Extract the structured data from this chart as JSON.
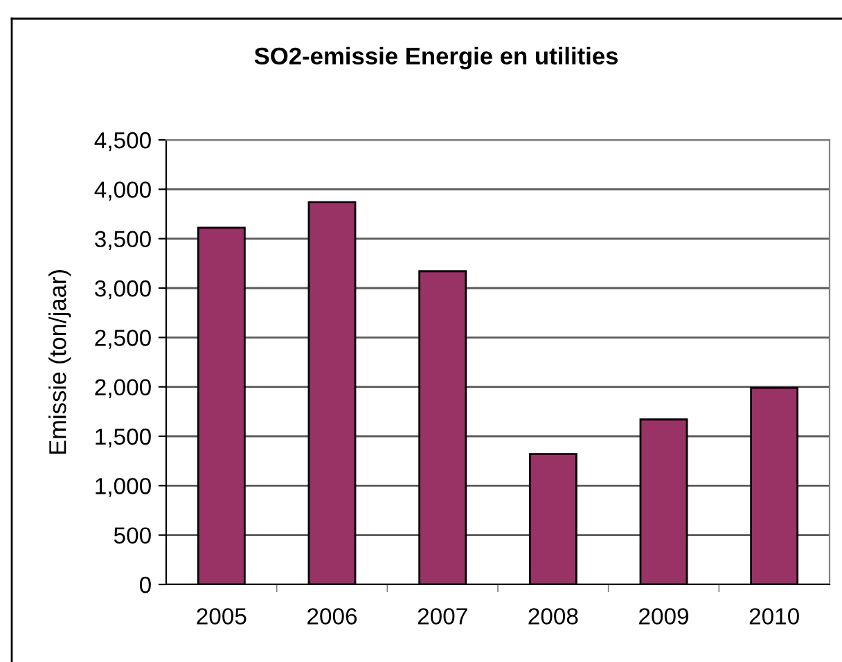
{
  "chart_data": {
    "type": "bar",
    "title": "SO2-emissie Energie en utilities",
    "ylabel": "Emissie (ton/jaar)",
    "categories": [
      "2005",
      "2006",
      "2007",
      "2008",
      "2009",
      "2010"
    ],
    "values": [
      3610,
      3870,
      3170,
      1320,
      1670,
      1990
    ],
    "color": "#993366",
    "ylim": [
      0,
      4500
    ],
    "yticks": [
      0,
      500,
      {
        "value": 1000,
        "label": "1,000"
      },
      {
        "value": 1500,
        "label": "1,500"
      },
      {
        "value": 2000,
        "label": "2,000"
      },
      {
        "value": 2500,
        "label": "2,500"
      },
      {
        "value": 3000,
        "label": "3,000"
      },
      {
        "value": 3500,
        "label": "3,500"
      },
      {
        "value": 4000,
        "label": "4,000"
      },
      {
        "value": 4500,
        "label": "4,500"
      }
    ],
    "grid": "y",
    "legend": false
  }
}
